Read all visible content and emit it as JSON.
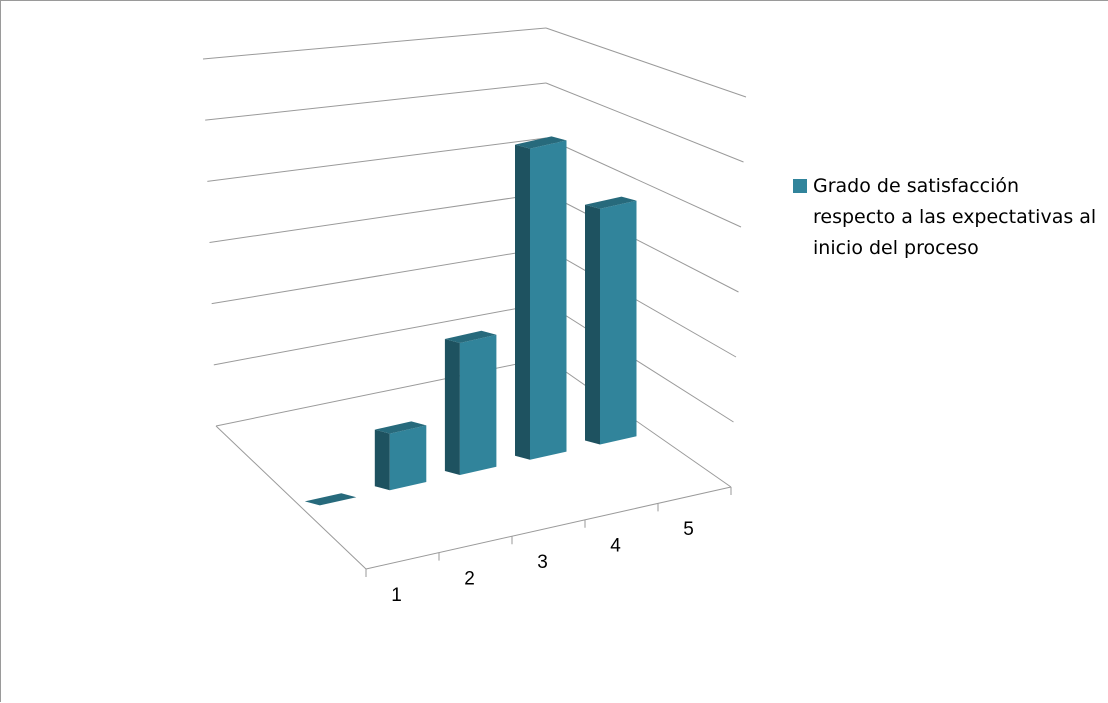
{
  "chart_data": {
    "type": "bar",
    "style": "3d-column",
    "categories": [
      "1",
      "2",
      "3",
      "4",
      "5"
    ],
    "series": [
      {
        "name": "Grado de satisfacción respecto a las expectativas al inicio del proceso",
        "values": [
          0,
          1.2,
          2.8,
          6.6,
          5.0
        ],
        "color": "#31849b"
      }
    ],
    "ylim": [
      0,
      7
    ],
    "grid": true,
    "legend": "right"
  }
}
